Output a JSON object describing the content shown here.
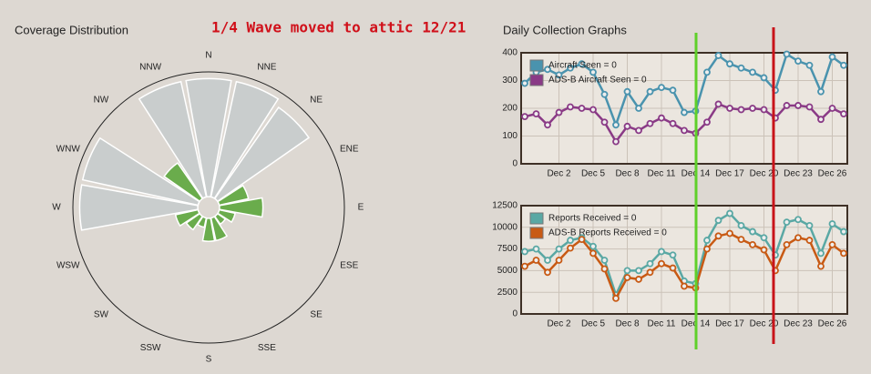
{
  "annotation": "1/4 Wave moved to attic 12/21",
  "section_title": "Daily Collection Graphs",
  "chart_data": [
    {
      "type": "polar",
      "title": "Coverage Distribution",
      "categories": [
        "N",
        "NNE",
        "NE",
        "ENE",
        "E",
        "ESE",
        "SE",
        "SSE",
        "S",
        "SSW",
        "SW",
        "WSW",
        "W",
        "WNW",
        "NW",
        "NNW"
      ],
      "values": [
        95,
        95,
        90,
        30,
        40,
        20,
        15,
        25,
        25,
        15,
        20,
        25,
        95,
        95,
        40,
        95
      ],
      "color": "#c9cdcd",
      "inner_color": "#6aac4c"
    },
    {
      "type": "line",
      "categories": [
        null,
        null,
        null,
        "Dec 2",
        null,
        null,
        "Dec 5",
        null,
        null,
        "Dec 8",
        null,
        null,
        "Dec 11",
        null,
        null,
        "Dec 14",
        null,
        null,
        "Dec 17",
        null,
        null,
        "Dec 20",
        null,
        null,
        "Dec 23",
        null,
        null,
        "Dec 26",
        null
      ],
      "series": [
        {
          "name": "Aircraft Seen = 0",
          "color": "#4a93ae",
          "values": [
            290,
            330,
            340,
            320,
            345,
            360,
            330,
            250,
            140,
            260,
            200,
            260,
            275,
            265,
            185,
            190,
            330,
            390,
            360,
            345,
            330,
            310,
            265,
            395,
            370,
            355,
            260,
            385,
            355
          ]
        },
        {
          "name": "ADS-B Aircraft Seen = 0",
          "color": "#8a3a86",
          "values": [
            170,
            180,
            140,
            185,
            205,
            200,
            195,
            150,
            80,
            135,
            120,
            145,
            165,
            145,
            120,
            110,
            150,
            215,
            200,
            195,
            200,
            195,
            165,
            210,
            210,
            205,
            160,
            200,
            180
          ]
        }
      ],
      "ylim": [
        0,
        400
      ],
      "yticks": [
        0,
        100,
        200,
        300,
        400
      ],
      "grid": true
    },
    {
      "type": "line",
      "categories": [
        null,
        null,
        null,
        "Dec 2",
        null,
        null,
        "Dec 5",
        null,
        null,
        "Dec 8",
        null,
        null,
        "Dec 11",
        null,
        null,
        "Dec 14",
        null,
        null,
        "Dec 17",
        null,
        null,
        "Dec 20",
        null,
        null,
        "Dec 23",
        null,
        null,
        "Dec 26",
        null
      ],
      "series": [
        {
          "name": "Reports Received = 0",
          "color": "#5aa8a4",
          "values": [
            7200,
            7500,
            6200,
            7500,
            8500,
            8800,
            7800,
            6200,
            2200,
            5000,
            5000,
            5800,
            7200,
            6800,
            3800,
            3500,
            8500,
            10800,
            11600,
            10200,
            9500,
            8800,
            6800,
            10600,
            10900,
            10200,
            7000,
            10400,
            9500
          ]
        },
        {
          "name": "ADS-B Reports Received = 0",
          "color": "#c85a14",
          "values": [
            5500,
            6200,
            4800,
            6200,
            7600,
            8600,
            7000,
            5200,
            1800,
            4200,
            4000,
            4800,
            5800,
            5300,
            3200,
            3000,
            7500,
            9000,
            9300,
            8600,
            8000,
            7400,
            5000,
            8000,
            8800,
            8500,
            5500,
            8000,
            7000
          ]
        }
      ],
      "ylim": [
        0,
        12500
      ],
      "yticks": [
        0,
        2500,
        5000,
        7500,
        10000,
        12500
      ],
      "grid": true
    }
  ]
}
